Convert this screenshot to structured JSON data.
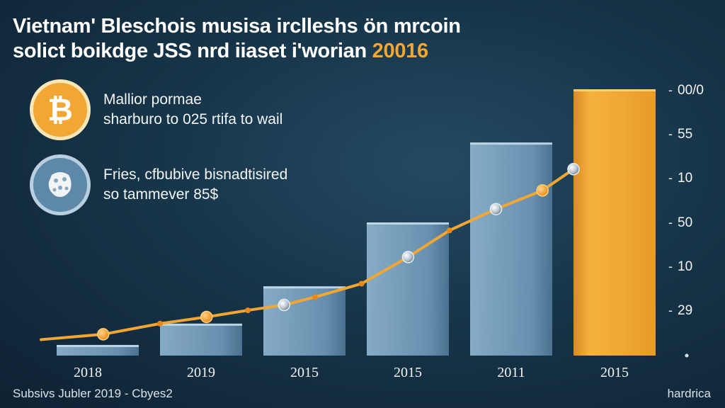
{
  "title": {
    "line1": "Vietnam' Bleschois musisa irclleshs ön mrcoin",
    "line2": "solict boikdge JSS nrd iiaset i'worian",
    "line2_year": "20016"
  },
  "info": [
    {
      "icon": "bitcoin-icon",
      "line1": "Mallior pormae",
      "line2": "sharburo to 025 rtifa to wail"
    },
    {
      "icon": "network-globe-icon",
      "line1": "Fries, cfbubive bisnadtisired",
      "line2": "so tammever 85$"
    }
  ],
  "footer": {
    "left": "Subsivs Jubler 2019 - Cbyes2",
    "right": "hardrica"
  },
  "colors": {
    "background": "#173549",
    "bar_blue": "#7aa4c2",
    "bar_orange": "#f2a735",
    "line": "#f2a735"
  },
  "chart_data": {
    "type": "bar",
    "categories": [
      "2018",
      "2019",
      "2015",
      "2015",
      "2011",
      "2015"
    ],
    "values": [
      4,
      12,
      26,
      50,
      80,
      100
    ],
    "highlight_index": 5,
    "y_tick_labels": [
      "00/0",
      "55",
      "10",
      "50",
      "10",
      "29",
      ""
    ],
    "ylim": [
      0,
      100
    ],
    "grid": false,
    "line_series": {
      "x": [
        0.45,
        1.0,
        1.45,
        1.85,
        2.2,
        2.5,
        2.95,
        3.4,
        3.8,
        4.25,
        4.7,
        5.0
      ],
      "y": [
        8,
        12,
        14.5,
        17,
        19,
        22,
        27,
        37,
        47,
        55,
        62,
        70
      ],
      "markers": [
        {
          "x": 0.45,
          "y": 8,
          "style": "orange"
        },
        {
          "x": 1.45,
          "y": 14.5,
          "style": "orange"
        },
        {
          "x": 2.2,
          "y": 19,
          "style": "silver"
        },
        {
          "x": 3.4,
          "y": 37,
          "style": "silver"
        },
        {
          "x": 4.25,
          "y": 55,
          "style": "silver"
        },
        {
          "x": 4.7,
          "y": 62,
          "style": "orange"
        },
        {
          "x": 5.0,
          "y": 70,
          "style": "silver"
        }
      ]
    }
  }
}
